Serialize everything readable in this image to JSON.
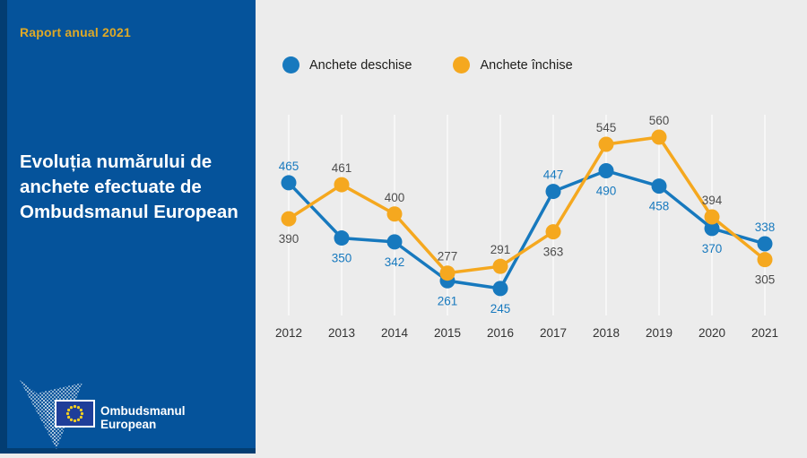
{
  "theme": {
    "panel": "#05539b",
    "panel_edge": "#033d72",
    "accent": "#dfa926",
    "chart_bg": "#ececec",
    "grid_color": "#f7f7f7"
  },
  "sidebar": {
    "report_label": "Raport anual 2021",
    "title": "Evoluția numărului de anchete efectuate de Ombudsmanul European",
    "title_lines": [
      "Evoluția numărului de",
      "anchete efectuate de",
      "Ombudsmanul European"
    ],
    "logo": {
      "org_line1": "Ombudsmanul",
      "org_line2": "European"
    }
  },
  "chart_data": {
    "type": "line",
    "title": "Evoluția numărului de anchete efectuate de Ombudsmanul European",
    "x": [
      "2012",
      "2013",
      "2014",
      "2015",
      "2016",
      "2017",
      "2018",
      "2019",
      "2020",
      "2021"
    ],
    "series": [
      {
        "name": "Anchete deschise",
        "color": "#1779be",
        "label_color": "#1779be",
        "values": [
          465,
          350,
          342,
          261,
          245,
          447,
          490,
          458,
          370,
          338
        ],
        "label_side": [
          "above",
          "below",
          "below",
          "below",
          "below",
          "above",
          "below",
          "below",
          "below",
          "above"
        ]
      },
      {
        "name": "Anchete închise",
        "color": "#f5a81f",
        "label_color": "#4d4d4d",
        "values": [
          390,
          461,
          400,
          277,
          291,
          363,
          545,
          560,
          394,
          305
        ],
        "label_side": [
          "below",
          "above",
          "above",
          "above",
          "above",
          "below",
          "above",
          "above",
          "above",
          "below"
        ]
      }
    ],
    "ylim": [
      200,
      600
    ],
    "grid": "vertical-only",
    "legend_position": "top",
    "data_labels": true
  }
}
